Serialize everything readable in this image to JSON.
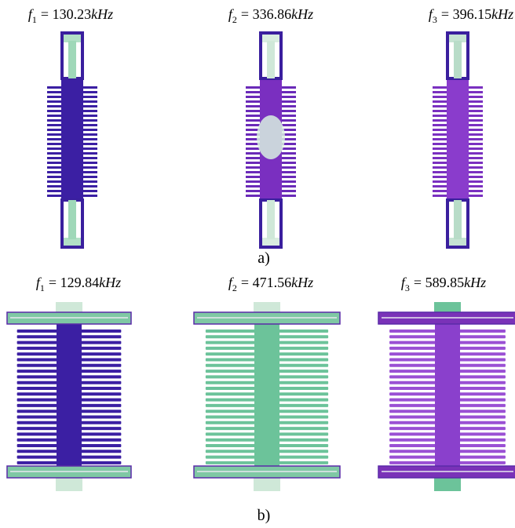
{
  "panels": [
    {
      "caption": "a)",
      "modes": [
        {
          "var": "f",
          "sub": "1",
          "eq": "= 130.23",
          "unit": "kHz"
        },
        {
          "var": "f",
          "sub": "2",
          "eq": "= 336.86",
          "unit": "kHz"
        },
        {
          "var": "f",
          "sub": "3",
          "eq": "= 396.15",
          "unit": "kHz"
        }
      ]
    },
    {
      "caption": "b)",
      "modes": [
        {
          "var": "f",
          "sub": "1",
          "eq": "= 129.84",
          "unit": "kHz"
        },
        {
          "var": "f",
          "sub": "2",
          "eq": "= 471.56",
          "unit": "kHz"
        },
        {
          "var": "f",
          "sub": "3",
          "eq": "= 589.85",
          "unit": "kHz"
        }
      ]
    }
  ]
}
